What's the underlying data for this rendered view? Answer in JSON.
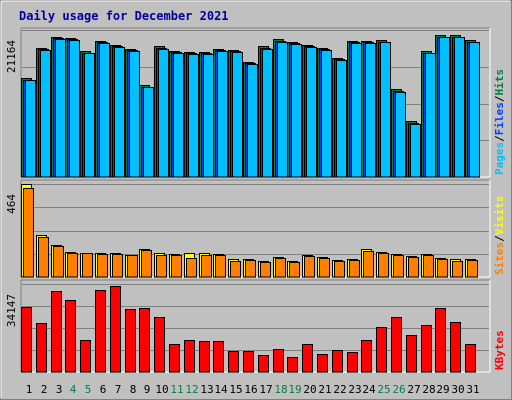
{
  "chart_data": {
    "type": "bar",
    "title": "Daily usage for December 2021",
    "categories": [
      "1",
      "2",
      "3",
      "4",
      "5",
      "6",
      "7",
      "8",
      "9",
      "10",
      "11",
      "12",
      "13",
      "14",
      "15",
      "16",
      "17",
      "18",
      "19",
      "20",
      "21",
      "22",
      "23",
      "24",
      "25",
      "26",
      "27",
      "28",
      "29",
      "30",
      "31"
    ],
    "weekend_days": [
      "4",
      "5",
      "11",
      "12",
      "18",
      "19",
      "25",
      "26"
    ],
    "panels": [
      {
        "id": "pages_files_hits",
        "ymax_label": "21164",
        "ylim": [
          0,
          21164
        ],
        "legend": [
          {
            "text": "Pages",
            "color": "#00c0ff"
          },
          {
            "text": "/",
            "color": "#000000"
          },
          {
            "text": "Files",
            "color": "#0040ff"
          },
          {
            "text": "/",
            "color": "#000000"
          },
          {
            "text": "Hits",
            "color": "#008040"
          }
        ],
        "series": [
          {
            "name": "Hits",
            "color": "#008040",
            "values": [
              14200,
              18600,
              20200,
              20000,
              18100,
              19600,
              19000,
              18500,
              13200,
              18800,
              18200,
              18000,
              18000,
              18500,
              18300,
              16600,
              18800,
              19800,
              19500,
              19000,
              18600,
              17200,
              19600,
              19600,
              19700,
              12600,
              8000,
              18100,
              20400,
              20400,
              19700
            ]
          },
          {
            "name": "Files",
            "color": "#0040ff",
            "values": [
              14000,
              18400,
              20000,
              19800,
              17900,
              19400,
              18800,
              18300,
              13000,
              18600,
              18000,
              17800,
              17800,
              18300,
              18100,
              16400,
              18600,
              19600,
              19300,
              18800,
              18400,
              17000,
              19400,
              19400,
              19500,
              12400,
              7800,
              17900,
              20200,
              20200,
              19500
            ]
          },
          {
            "name": "Pages",
            "color": "#00c0ff",
            "values": [
              13900,
              18300,
              19900,
              19700,
              17800,
              19300,
              18700,
              18200,
              12900,
              18500,
              17900,
              17700,
              17700,
              18200,
              18000,
              16300,
              18500,
              19500,
              19200,
              18700,
              18300,
              16900,
              19300,
              19300,
              19400,
              12300,
              7700,
              17800,
              20100,
              20100,
              19400
            ]
          }
        ]
      },
      {
        "id": "sites_visits",
        "ymax_label": "464",
        "ylim": [
          0,
          464
        ],
        "legend": [
          {
            "text": "Sites",
            "color": "#ff8000"
          },
          {
            "text": "/",
            "color": "#000000"
          },
          {
            "text": "Visits",
            "color": "#ffff00"
          }
        ],
        "series": [
          {
            "name": "Visits",
            "color": "#ffff00",
            "values": [
              464,
              210,
              160,
              125,
              122,
              120,
              118,
              112,
              140,
              118,
              115,
              120,
              118,
              113,
              88,
              90,
              82,
              102,
              80,
              112,
              98,
              86,
              90,
              140,
              126,
              114,
              104,
              116,
              96,
              88,
              90
            ]
          },
          {
            "name": "Sites",
            "color": "#ff8000",
            "values": [
              445,
              200,
              155,
              120,
              118,
              115,
              115,
              108,
              135,
              112,
              108,
              95,
              112,
              108,
              82,
              84,
              76,
              96,
              76,
              106,
              94,
              80,
              84,
              132,
              120,
              108,
              98,
              110,
              90,
              82,
              84
            ]
          }
        ]
      },
      {
        "id": "kbytes",
        "ymax_label": "34147",
        "ylim": [
          0,
          34147
        ],
        "legend": [
          {
            "text": "KBytes",
            "color": "#ff0000"
          }
        ],
        "series": [
          {
            "name": "KBytes",
            "color": "#ff0000",
            "values": [
              25400,
              18900,
              31300,
              27800,
              12300,
              31700,
              33300,
              24600,
              24800,
              21500,
              10800,
              12400,
              12200,
              11900,
              8200,
              8200,
              6600,
              9000,
              5900,
              10800,
              6900,
              8600,
              7700,
              12300,
              17600,
              21300,
              14500,
              18400,
              24700,
              19300,
              11000
            ]
          }
        ]
      }
    ]
  }
}
